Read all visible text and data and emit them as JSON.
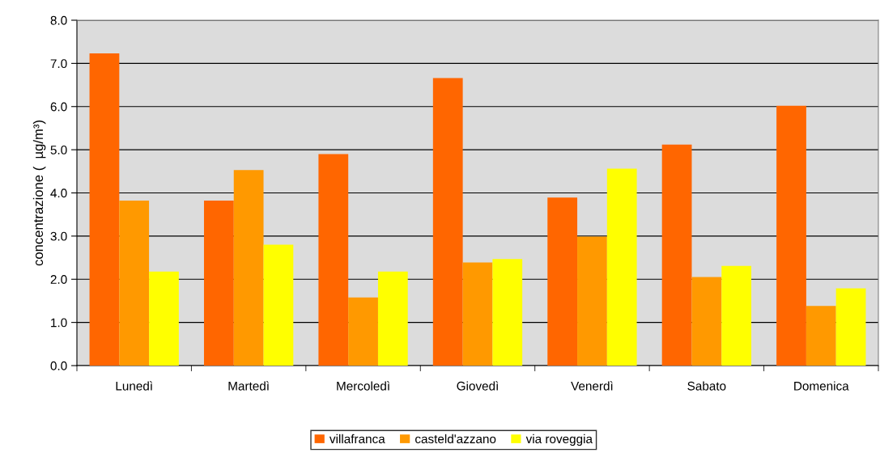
{
  "chart_data": {
    "type": "bar",
    "ylabel": "concentrazione (  µg/m³)",
    "categories": [
      "Lunedì",
      "Martedì",
      "Mercoledì",
      "Giovedì",
      "Venerdì",
      "Sabato",
      "Domenica"
    ],
    "series": [
      {
        "name": "villafranca",
        "color": "#ff6600",
        "values": [
          7.23,
          3.82,
          4.9,
          6.66,
          3.89,
          5.12,
          6.02
        ]
      },
      {
        "name": "casteld'azzano",
        "color": "#ff9900",
        "values": [
          3.82,
          4.53,
          1.58,
          2.39,
          2.99,
          2.05,
          1.38
        ]
      },
      {
        "name": "via roveggia",
        "color": "#ffff00",
        "values": [
          2.18,
          2.8,
          2.18,
          2.47,
          4.56,
          2.31,
          1.79
        ]
      }
    ],
    "ylim": [
      0,
      8
    ],
    "yticks": [
      {
        "value": 0,
        "label": "0.0"
      },
      {
        "value": 1,
        "label": "1.0"
      },
      {
        "value": 2,
        "label": "2.0"
      },
      {
        "value": 3,
        "label": "3.0"
      },
      {
        "value": 4,
        "label": "4.0"
      },
      {
        "value": 5,
        "label": "5.0"
      },
      {
        "value": 6,
        "label": "6.0"
      },
      {
        "value": 7,
        "label": "7.0"
      },
      {
        "value": 8,
        "label": "8.0"
      }
    ],
    "grid": "y",
    "legend": "bottom"
  }
}
